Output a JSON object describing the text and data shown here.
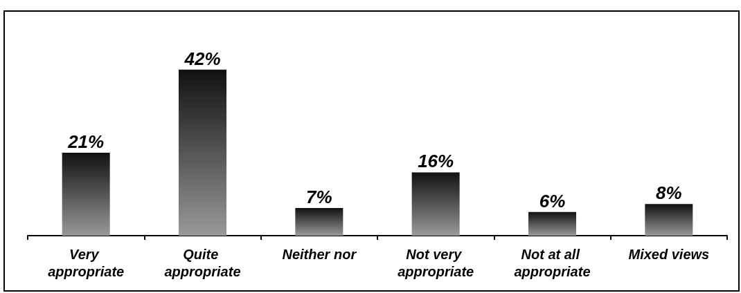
{
  "chart_data": {
    "type": "bar",
    "categories": [
      "Very appropriate",
      "Quite appropriate",
      "Neither nor",
      "Not very appropriate",
      "Not at all appropriate",
      "Mixed views"
    ],
    "values": [
      21,
      42,
      7,
      16,
      6,
      8
    ],
    "value_labels": [
      "21%",
      "42%",
      "7%",
      "16%",
      "6%",
      "8%"
    ],
    "color": "#555555",
    "tick_labels": "x"
  }
}
